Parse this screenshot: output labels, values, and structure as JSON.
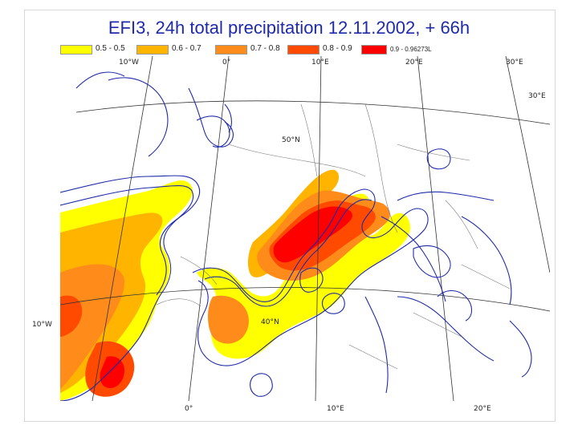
{
  "title": "EFI3, 24h total precipitation  12.11.2002, + 66h",
  "legend": [
    {
      "label": "0.5 - 0.5",
      "color": "#ffff00"
    },
    {
      "label": "0.6 - 0.7",
      "color": "#ffb400"
    },
    {
      "label": "0.7 - 0.8",
      "color": "#ff8c1a"
    },
    {
      "label": "0.8 - 0.9",
      "color": "#ff4a00"
    },
    {
      "label": "0.9 - 0.96273L",
      "color": "#ff0000"
    }
  ],
  "map_labels": {
    "lon_top_10w": "10°W",
    "lon_top_0": "0°",
    "lon_top_10e": "10°E",
    "lon_top_20e": "20°E",
    "lon_top_30e_a": "30°E",
    "lon_right_30e": "30°E",
    "lat_50n": "50°N",
    "lat_40n": "40°N",
    "lon_left_10w": "10°W",
    "lon_bottom_0": "0°",
    "lon_bottom_10e": "10°E",
    "lon_bottom_20e": "20°E"
  },
  "colors": {
    "coast": "#1f2aa8",
    "grid": "#333333",
    "border": "#777777"
  }
}
